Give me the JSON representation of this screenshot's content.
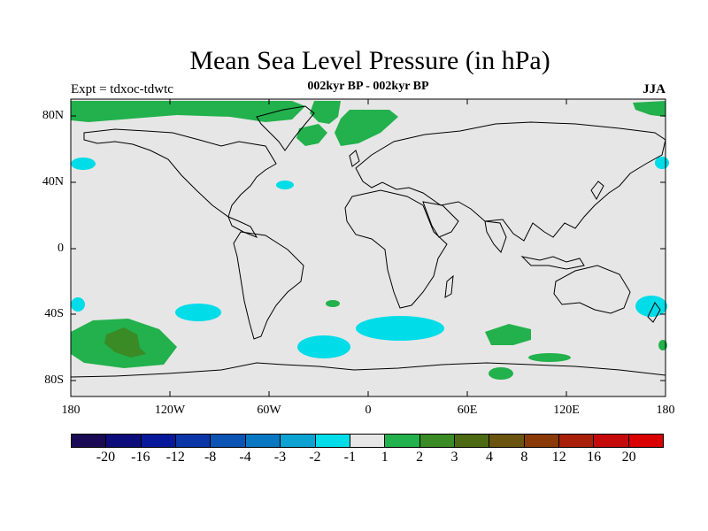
{
  "title": "Mean Sea Level Pressure (in hPa)",
  "subtitle": "002kyr BP - 002kyr BP",
  "expt_label": "Expt = tdxoc-tdwtc",
  "season": "JJA",
  "lat_labels": [
    "80N",
    "40N",
    "0",
    "40S",
    "80S"
  ],
  "lon_labels": [
    "180",
    "120W",
    "60W",
    "0",
    "60E",
    "120E",
    "180"
  ],
  "colorbar": {
    "labels": [
      "-20",
      "-16",
      "-12",
      "-8",
      "-4",
      "-3",
      "-2",
      "-1",
      "1",
      "2",
      "3",
      "4",
      "8",
      "12",
      "16",
      "20"
    ],
    "colors": [
      "#1a0a55",
      "#0c0c7a",
      "#07199a",
      "#0a36a8",
      "#0b54b4",
      "#0a77c2",
      "#0ca3d2",
      "#00dce8",
      "#e6e6e6",
      "#22b14c",
      "#3a8a26",
      "#4c6a14",
      "#6a5410",
      "#8a3a08",
      "#a8200a",
      "#c40a0a",
      "#d80000"
    ]
  },
  "colors": {
    "ocean_fill": "#e6e6e6",
    "positive_1_2": "#22b14c",
    "positive_2_3": "#3a8a26",
    "negative_1_2": "#00dce8"
  }
}
